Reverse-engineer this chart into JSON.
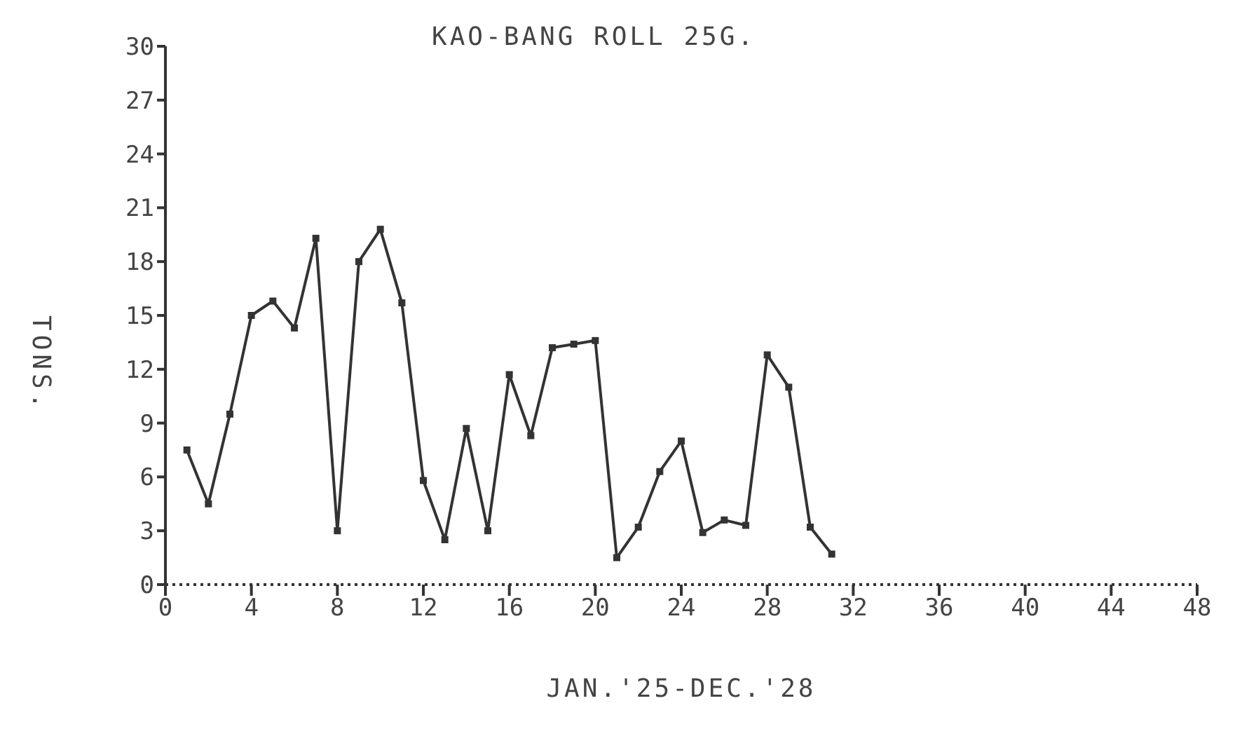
{
  "chart_data": {
    "type": "line",
    "title": "KAO-BANG ROLL 25G.",
    "xlabel": "JAN.'25-DEC.'28",
    "ylabel": "TONS.",
    "x": [
      1,
      2,
      3,
      4,
      5,
      6,
      7,
      8,
      9,
      10,
      11,
      12,
      13,
      14,
      15,
      16,
      17,
      18,
      19,
      20,
      21,
      22,
      23,
      24,
      25,
      26,
      27,
      28,
      29,
      30,
      31
    ],
    "series": [
      {
        "color": "#333333",
        "values": [
          7.5,
          4.5,
          9.5,
          15,
          15.8,
          14.3,
          19.3,
          3,
          18,
          19.8,
          15.7,
          5.8,
          2.5,
          8.7,
          3,
          11.7,
          8.3,
          13.2,
          13.4,
          13.6,
          1.5,
          3.2,
          6.3,
          8,
          2.9,
          3.6,
          3.3,
          12.8,
          11,
          3.2,
          1.7
        ]
      }
    ],
    "xlim": [
      0,
      48
    ],
    "xticks": [
      0,
      4,
      8,
      12,
      16,
      20,
      24,
      28,
      32,
      36,
      40,
      44,
      48
    ],
    "ylim": [
      0,
      30
    ],
    "yticks": [
      0,
      3,
      6,
      9,
      12,
      15,
      18,
      21,
      24,
      27,
      30
    ],
    "grid": false,
    "legend": false,
    "marker": "square",
    "line_style": "solid"
  }
}
